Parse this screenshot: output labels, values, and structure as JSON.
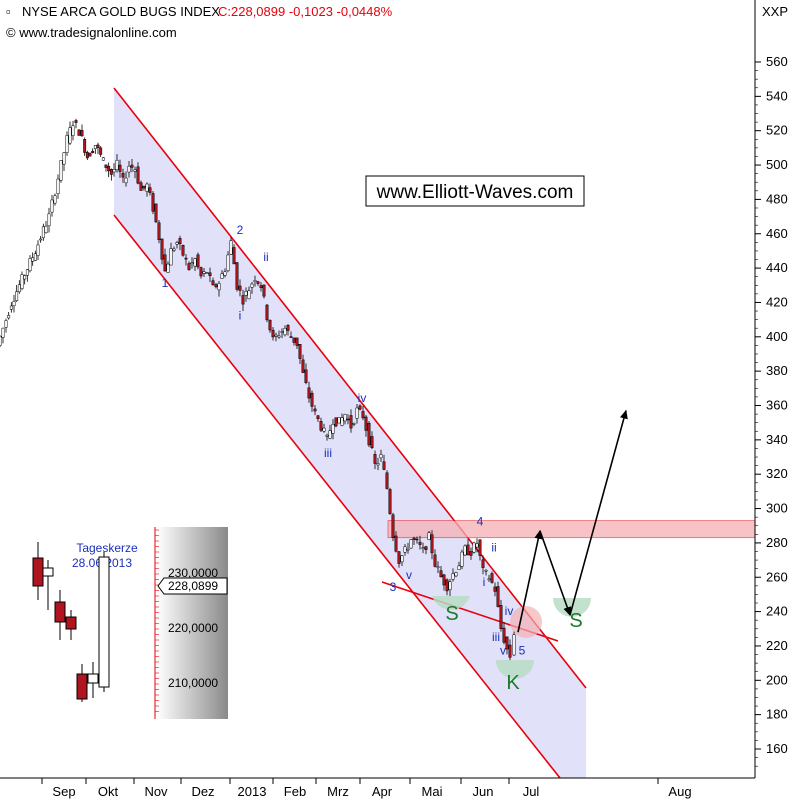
{
  "header": {
    "title": "NYSE ARCA GOLD BUGS INDEX",
    "quote": "C:228,0899 -0,1023 -0,0448%",
    "source": "© www.tradesignalonline.com",
    "symbol": "XXP"
  },
  "watermark": "www.Elliott-Waves.com",
  "colors": {
    "channel_line": "#e8000b",
    "channel_fill": "#dcdcf8",
    "up_candle": "#ffffff",
    "down_candle": "#b0141e",
    "resistance_fill": "#f6b0b4",
    "support_arc": "#b9dcc4",
    "head_arc": "#f4b0b4",
    "wave_label": "#1a2fbd",
    "pattern_label": "#1a7a2a",
    "quote_text": "#e8000b"
  },
  "chart_data": {
    "type": "candlestick",
    "title": "NYSE ARCA GOLD BUGS INDEX",
    "ylim": [
      145,
      570
    ],
    "y_ticks": [
      160,
      180,
      200,
      220,
      240,
      260,
      280,
      300,
      320,
      340,
      360,
      380,
      400,
      420,
      440,
      460,
      480,
      500,
      520,
      540,
      560
    ],
    "x_ticks": [
      "Sep",
      "Okt",
      "Nov",
      "Dez",
      "2013",
      "Feb",
      "Mrz",
      "Apr",
      "Mai",
      "Jun",
      "Jul",
      "Aug"
    ],
    "last_close": 228.0899,
    "last_change": -0.1023,
    "last_change_pct": -0.0448,
    "price_path": [
      [
        0,
        395
      ],
      [
        6,
        405
      ],
      [
        14,
        420
      ],
      [
        22,
        430
      ],
      [
        30,
        440
      ],
      [
        38,
        450
      ],
      [
        46,
        462
      ],
      [
        52,
        470
      ],
      [
        58,
        485
      ],
      [
        64,
        500
      ],
      [
        70,
        515
      ],
      [
        76,
        525
      ],
      [
        82,
        520
      ],
      [
        90,
        505
      ],
      [
        98,
        512
      ],
      [
        106,
        502
      ],
      [
        114,
        495
      ],
      [
        120,
        500
      ],
      [
        126,
        490
      ],
      [
        132,
        500
      ],
      [
        138,
        498
      ],
      [
        144,
        485
      ],
      [
        150,
        488
      ],
      [
        156,
        475
      ],
      [
        162,
        458
      ],
      [
        168,
        438
      ],
      [
        174,
        450
      ],
      [
        180,
        455
      ],
      [
        186,
        448
      ],
      [
        192,
        440
      ],
      [
        198,
        445
      ],
      [
        204,
        435
      ],
      [
        210,
        438
      ],
      [
        216,
        428
      ],
      [
        222,
        432
      ],
      [
        228,
        440
      ],
      [
        234,
        455
      ],
      [
        240,
        430
      ],
      [
        246,
        422
      ],
      [
        252,
        428
      ],
      [
        258,
        435
      ],
      [
        264,
        430
      ],
      [
        270,
        412
      ],
      [
        276,
        398
      ],
      [
        282,
        402
      ],
      [
        288,
        405
      ],
      [
        294,
        400
      ],
      [
        300,
        396
      ],
      [
        306,
        378
      ],
      [
        312,
        365
      ],
      [
        318,
        355
      ],
      [
        324,
        348
      ],
      [
        330,
        340
      ],
      [
        336,
        352
      ],
      [
        342,
        350
      ],
      [
        348,
        355
      ],
      [
        354,
        348
      ],
      [
        360,
        357
      ],
      [
        366,
        354
      ],
      [
        372,
        340
      ],
      [
        378,
        325
      ],
      [
        384,
        330
      ],
      [
        390,
        312
      ],
      [
        396,
        285
      ],
      [
        402,
        270
      ],
      [
        408,
        275
      ],
      [
        414,
        282
      ],
      [
        420,
        280
      ],
      [
        426,
        275
      ],
      [
        432,
        283
      ],
      [
        438,
        268
      ],
      [
        444,
        260
      ],
      [
        450,
        255
      ],
      [
        456,
        262
      ],
      [
        462,
        268
      ],
      [
        468,
        276
      ],
      [
        474,
        275
      ],
      [
        480,
        280
      ],
      [
        486,
        263
      ],
      [
        492,
        260
      ],
      [
        498,
        253
      ],
      [
        504,
        230
      ],
      [
        510,
        218
      ],
      [
        514,
        214
      ],
      [
        518,
        228
      ]
    ],
    "elliott_labels": [
      {
        "text": "1",
        "price": 429,
        "day": 165
      },
      {
        "text": "2",
        "price": 460,
        "day": 240
      },
      {
        "text": "i",
        "price": 410,
        "day": 240
      },
      {
        "text": "ii",
        "price": 444,
        "day": 266
      },
      {
        "text": "iii",
        "price": 330,
        "day": 328
      },
      {
        "text": "iv",
        "price": 362,
        "day": 362
      },
      {
        "text": "v",
        "price": 259,
        "day": 409
      },
      {
        "text": "3",
        "price": 252,
        "day": 393
      },
      {
        "text": "4",
        "price": 290,
        "day": 480
      },
      {
        "text": "ii",
        "price": 275,
        "day": 494
      },
      {
        "text": "i",
        "price": 255,
        "day": 484
      },
      {
        "text": "iii",
        "price": 223,
        "day": 496
      },
      {
        "text": "iv",
        "price": 238,
        "day": 509
      },
      {
        "text": "v",
        "price": 215,
        "day": 503
      },
      {
        "text": "5",
        "price": 215,
        "day": 522
      }
    ],
    "pattern_labels": [
      {
        "text": "S",
        "price": 235,
        "day": 452
      },
      {
        "text": "K",
        "price": 195,
        "day": 513
      },
      {
        "text": "S",
        "price": 231,
        "day": 576
      }
    ],
    "resistance_zone": [
      283,
      293
    ],
    "projection": [
      {
        "day": 518,
        "price": 228
      },
      {
        "day": 540,
        "price": 287
      },
      {
        "day": 570,
        "price": 238
      },
      {
        "day": 626,
        "price": 357
      }
    ]
  },
  "inset": {
    "title_line1": "Tageskerze",
    "title_line2": "28.06.2013",
    "ticks": [
      "230,0000",
      "220,0000",
      "210,0000"
    ],
    "current": "228,0899"
  }
}
